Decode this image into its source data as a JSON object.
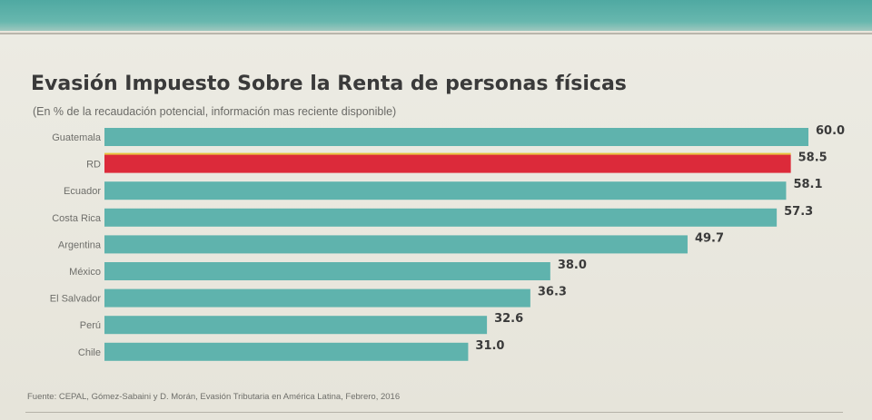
{
  "colors": {
    "bar": "#5fb3ad",
    "highlight": "#dc2a3a",
    "highlight_edge": "#e8c23a"
  },
  "chart_data": {
    "type": "bar",
    "orientation": "horizontal",
    "title": "Evasión Impuesto Sobre la Renta de personas físicas",
    "subtitle": "(En % de la recaudación potencial, información mas reciente disponible)",
    "categories": [
      "Guatemala",
      "RD",
      "Ecuador",
      "Costa Rica",
      "Argentina",
      "México",
      "El Salvador",
      "Perú",
      "Chile"
    ],
    "values": [
      60.0,
      58.5,
      58.1,
      57.3,
      49.7,
      38.0,
      36.3,
      32.6,
      31.0
    ],
    "value_labels": [
      "60.0",
      "58.5",
      "58.1",
      "57.3",
      "49.7",
      "38.0",
      "36.3",
      "32.6",
      "31.0"
    ],
    "highlight": "RD",
    "xlim": [
      0,
      60
    ],
    "grid": false,
    "source": "Fuente: CEPAL, Gómez-Sabaini y D. Morán, Evasión Tributaria en América Latina, Febrero, 2016"
  }
}
